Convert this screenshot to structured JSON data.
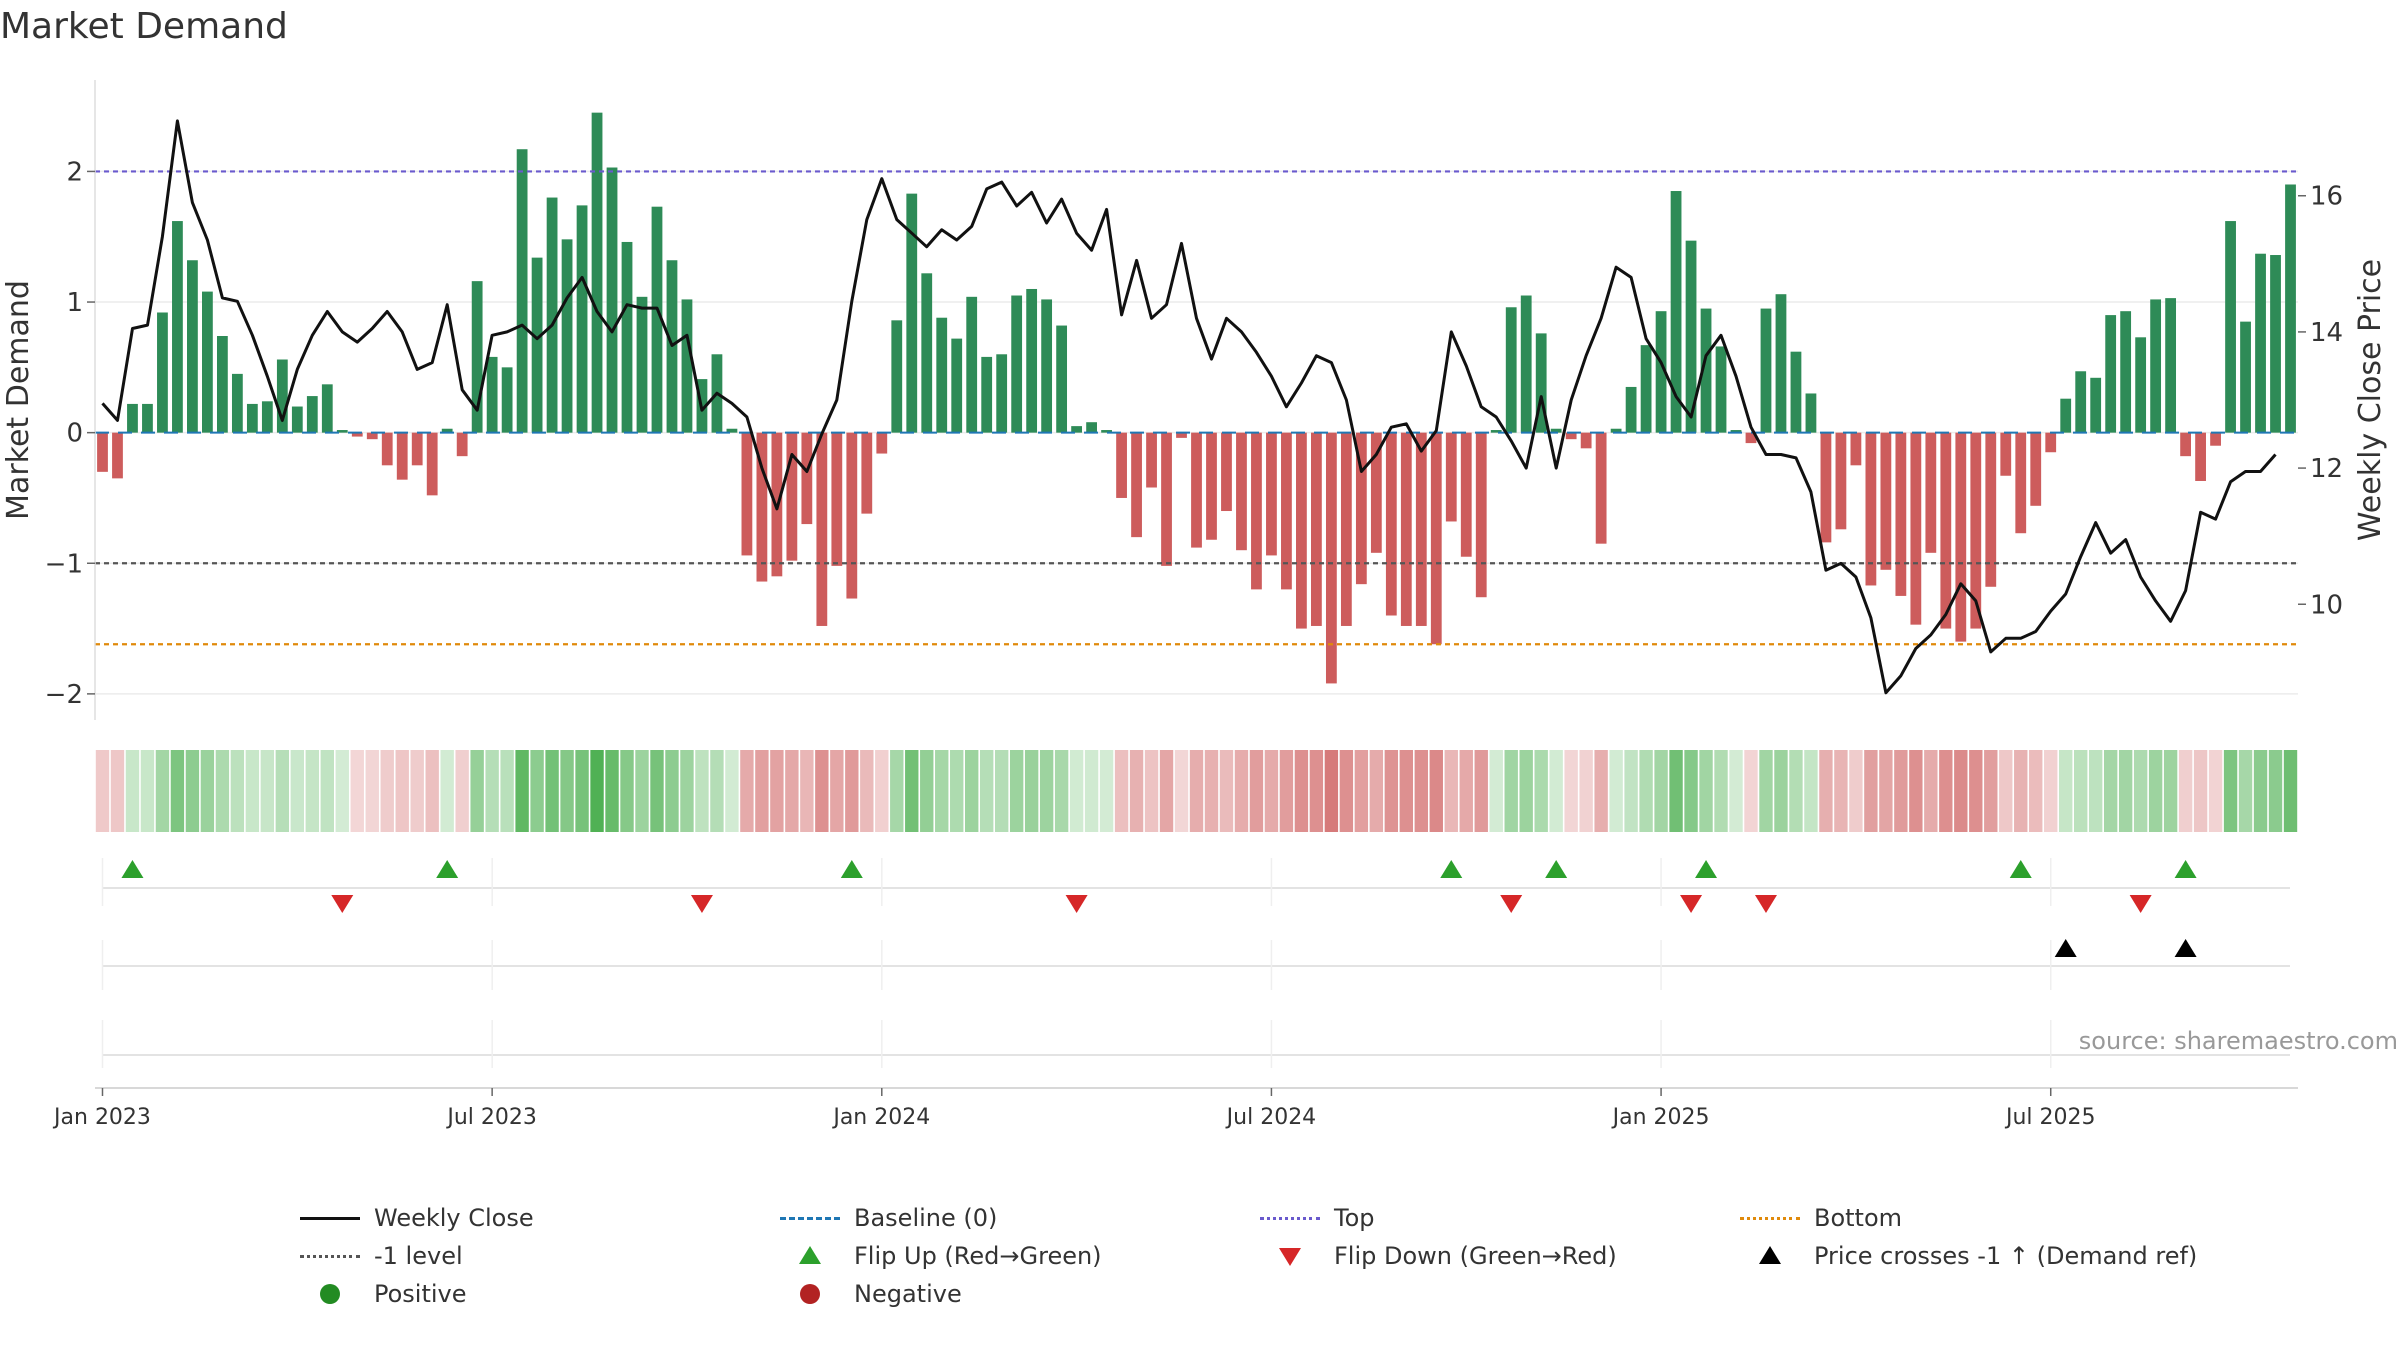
{
  "title": "Market Demand",
  "source": "source: sharemaestro.com",
  "colors": {
    "positive_bar": "#2e8b57",
    "negative_bar": "#cd5c5c",
    "close_line": "#111111",
    "baseline": "#1f77b4",
    "top": "#6a5acd",
    "minus1": "#555555",
    "bottom": "#e08a0b",
    "flip_up": "#2ca02c",
    "flip_down": "#d62728",
    "cross": "#000000",
    "positive_dot": "#228b22",
    "negative_dot": "#b22222"
  },
  "chart_data": {
    "type": "bar+line",
    "title": "Market Demand",
    "ylabel_left": "Market Demand",
    "ylabel_right": "Weekly Close Price",
    "ylim_left": [
      -2.2,
      2.7
    ],
    "ylim_right": [
      8.3,
      17.7
    ],
    "yticks_left": [
      2,
      1,
      0,
      -1,
      -2
    ],
    "ytick_labels_left": [
      "2",
      "1",
      "0",
      "−1",
      "−2"
    ],
    "yticks_right": [
      16,
      14,
      12,
      10
    ],
    "ytick_labels_right": [
      "16",
      "14",
      "12",
      "10"
    ],
    "x_labels": [
      "Jan 2023",
      "Jul 2023",
      "Jan 2024",
      "Jul 2024",
      "Jan 2025",
      "Jul 2025"
    ],
    "x_label_weeks": [
      0.5,
      26.5,
      52.5,
      78.5,
      104.5,
      130.5
    ],
    "reference_lines": {
      "top": 2,
      "minus_one": -1,
      "bottom": -1.62,
      "baseline": 0
    },
    "demand": [
      -0.3,
      -0.35,
      0.22,
      0.22,
      0.92,
      1.62,
      1.32,
      1.08,
      0.74,
      0.45,
      0.22,
      0.24,
      0.56,
      0.2,
      0.28,
      0.37,
      0.02,
      -0.03,
      -0.05,
      -0.25,
      -0.36,
      -0.25,
      -0.48,
      0.03,
      -0.18,
      1.16,
      0.58,
      0.5,
      2.17,
      1.34,
      1.8,
      1.48,
      1.74,
      2.45,
      2.03,
      1.46,
      1.04,
      1.73,
      1.32,
      1.02,
      0.41,
      0.6,
      0.03,
      -0.94,
      -1.14,
      -1.1,
      -0.98,
      -0.7,
      -1.48,
      -1.02,
      -1.27,
      -0.62,
      -0.16,
      0.86,
      1.83,
      1.22,
      0.88,
      0.72,
      1.04,
      0.58,
      0.6,
      1.05,
      1.1,
      1.02,
      0.82,
      0.05,
      0.08,
      0.02,
      -0.5,
      -0.8,
      -0.42,
      -1.02,
      -0.04,
      -0.88,
      -0.82,
      -0.6,
      -0.9,
      -1.2,
      -0.94,
      -1.2,
      -1.5,
      -1.48,
      -1.92,
      -1.48,
      -1.16,
      -0.92,
      -1.4,
      -1.48,
      -1.48,
      -1.62,
      -0.68,
      -0.95,
      -1.26,
      0.02,
      0.96,
      1.05,
      0.76,
      0.03,
      -0.05,
      -0.12,
      -0.85,
      0.03,
      0.35,
      0.67,
      0.93,
      1.85,
      1.47,
      0.95,
      0.66,
      0.02,
      -0.08,
      0.95,
      1.06,
      0.62,
      0.3,
      -0.84,
      -0.74,
      -0.25,
      -1.17,
      -1.05,
      -1.25,
      -1.47,
      -0.92,
      -1.5,
      -1.6,
      -1.5,
      -1.18,
      -0.33,
      -0.77,
      -0.56,
      -0.15,
      0.26,
      0.47,
      0.42,
      0.9,
      0.93,
      0.73,
      1.02,
      1.03,
      -0.18,
      -0.37,
      -0.1,
      1.62,
      0.85,
      1.37,
      1.36,
      1.9
    ],
    "close": [
      12.95,
      12.7,
      14.05,
      14.1,
      15.4,
      17.1,
      15.9,
      15.35,
      14.5,
      14.45,
      13.95,
      13.35,
      12.7,
      13.45,
      13.95,
      14.3,
      14.0,
      13.85,
      14.05,
      14.3,
      14.0,
      13.45,
      13.55,
      14.4,
      13.15,
      12.85,
      13.95,
      14.0,
      14.1,
      13.9,
      14.1,
      14.5,
      14.8,
      14.3,
      14.0,
      14.4,
      14.35,
      14.35,
      13.8,
      13.95,
      12.85,
      13.1,
      12.95,
      12.75,
      12.0,
      11.4,
      12.2,
      11.95,
      12.5,
      13.0,
      14.45,
      15.65,
      16.25,
      15.65,
      15.45,
      15.25,
      15.5,
      15.35,
      15.55,
      16.1,
      16.2,
      15.85,
      16.05,
      15.6,
      15.95,
      15.45,
      15.2,
      15.8,
      14.25,
      15.05,
      14.2,
      14.4,
      15.3,
      14.2,
      13.6,
      14.2,
      14.0,
      13.7,
      13.35,
      12.9,
      13.25,
      13.65,
      13.55,
      13.0,
      11.95,
      12.2,
      12.6,
      12.65,
      12.25,
      12.55,
      14.0,
      13.5,
      12.9,
      12.75,
      12.4,
      12.0,
      13.05,
      12.0,
      13.0,
      13.65,
      14.2,
      14.95,
      14.8,
      13.9,
      13.55,
      13.05,
      12.75,
      13.65,
      13.95,
      13.35,
      12.6,
      12.2,
      12.2,
      12.15,
      11.65,
      10.5,
      10.6,
      10.4,
      9.8,
      8.7,
      8.95,
      9.35,
      9.55,
      9.85,
      10.3,
      10.05,
      9.3,
      9.5,
      9.5,
      9.6,
      9.9,
      10.15,
      10.7,
      11.2,
      10.75,
      10.95,
      10.4,
      10.05,
      9.75,
      10.2,
      11.35,
      11.25,
      11.8,
      11.95,
      11.95,
      12.2
    ],
    "heat_strip": [
      -0.3,
      -0.35,
      0.22,
      0.22,
      0.92,
      1.62,
      1.32,
      1.08,
      0.74,
      0.45,
      0.22,
      0.24,
      0.56,
      0.2,
      0.28,
      0.37,
      0.02,
      -0.03,
      -0.05,
      -0.25,
      -0.36,
      -0.25,
      -0.48,
      0.03,
      -0.18,
      1.16,
      0.58,
      0.5,
      2.17,
      1.34,
      1.8,
      1.48,
      1.74,
      2.45,
      2.03,
      1.46,
      1.04,
      1.73,
      1.32,
      1.02,
      0.41,
      0.6,
      0.03,
      -0.94,
      -1.14,
      -1.1,
      -0.98,
      -0.7,
      -1.48,
      -1.02,
      -1.27,
      -0.62,
      -0.16,
      0.86,
      1.83,
      1.22,
      0.88,
      0.72,
      1.04,
      0.58,
      0.6,
      1.05,
      1.1,
      1.02,
      0.82,
      0.05,
      0.08,
      0.02,
      -0.5,
      -0.8,
      -0.42,
      -1.02,
      -0.04,
      -0.88,
      -0.82,
      -0.6,
      -0.9,
      -1.2,
      -0.94,
      -1.2,
      -1.5,
      -1.48,
      -1.92,
      -1.48,
      -1.16,
      -0.92,
      -1.4,
      -1.48,
      -1.48,
      -1.62,
      -0.68,
      -0.95,
      -1.26,
      0.02,
      0.96,
      1.05,
      0.76,
      0.03,
      -0.05,
      -0.12,
      -0.85,
      0.03,
      0.35,
      0.67,
      0.93,
      1.85,
      1.47,
      0.95,
      0.66,
      0.02,
      -0.08,
      0.95,
      1.06,
      0.62,
      0.3,
      -0.84,
      -0.74,
      -0.25,
      -1.17,
      -1.05,
      -1.25,
      -1.47,
      -0.92,
      -1.5,
      -1.6,
      -1.5,
      -1.18,
      -0.33,
      -0.77,
      -0.56,
      -0.15,
      0.26,
      0.47,
      0.42,
      0.9,
      0.93,
      0.73,
      1.02,
      1.03,
      -0.18,
      -0.37,
      -0.1,
      1.62,
      0.85,
      1.37,
      1.36,
      1.9
    ],
    "flip_up_weeks": [
      2,
      23,
      50,
      90,
      97,
      107,
      128,
      139
    ],
    "flip_down_weeks": [
      16,
      40,
      65,
      94,
      106,
      111,
      136
    ],
    "cross_up_weeks": [
      131,
      139
    ]
  },
  "legend": [
    {
      "key": "close",
      "label": "Weekly Close"
    },
    {
      "key": "baseline",
      "label": "Baseline (0)"
    },
    {
      "key": "top",
      "label": "Top"
    },
    {
      "key": "bottom",
      "label": "Bottom"
    },
    {
      "key": "minus1",
      "label": "-1 level"
    },
    {
      "key": "flip_up",
      "label": "Flip Up (Red→Green)"
    },
    {
      "key": "flip_down",
      "label": "Flip Down (Green→Red)"
    },
    {
      "key": "cross",
      "label": "Price crosses -1 ↑ (Demand ref)"
    },
    {
      "key": "positive",
      "label": "Positive"
    },
    {
      "key": "negative",
      "label": "Negative"
    }
  ]
}
